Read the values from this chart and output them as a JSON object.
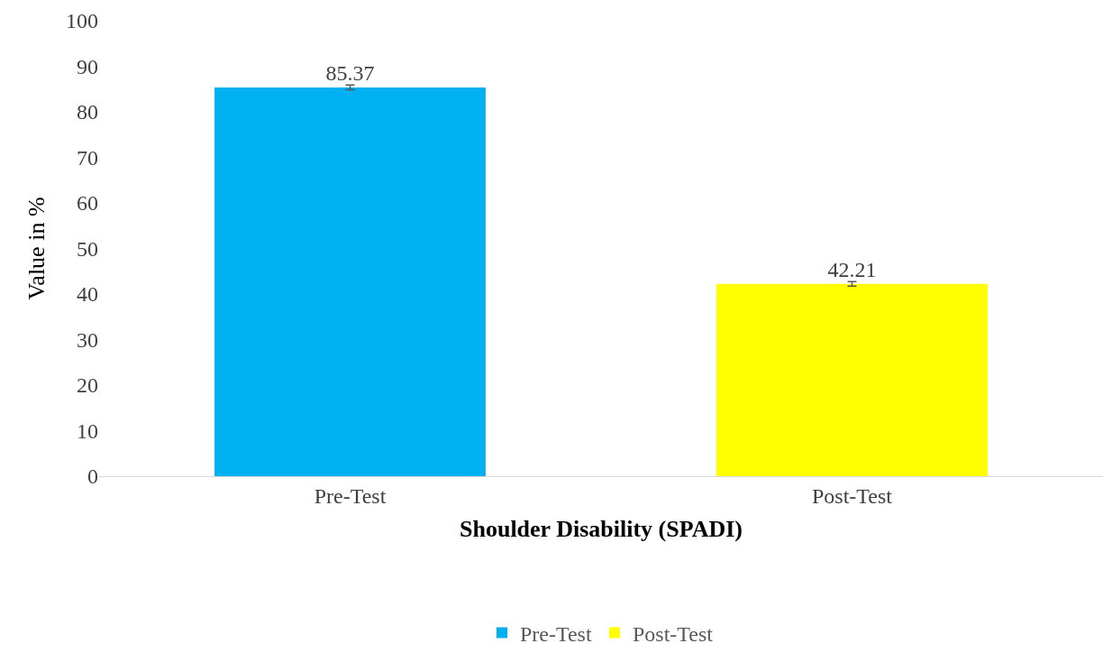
{
  "chart_data": {
    "type": "bar",
    "xlabel": "Shoulder Disability (SPADI)",
    "ylabel": "Value in %",
    "categories": [
      "Pre-Test",
      "Post-Test"
    ],
    "series": [
      {
        "name": "Pre-Test",
        "color": "#00b0f0",
        "values": [
          85.37,
          null
        ],
        "errors": [
          0.5,
          null
        ]
      },
      {
        "name": "Post-Test",
        "color": "#ffff00",
        "values": [
          null,
          42.21
        ],
        "errors": [
          null,
          0.5
        ]
      }
    ],
    "ylim": [
      0,
      100
    ],
    "yticks": [
      0,
      10,
      20,
      30,
      40,
      50,
      60,
      70,
      80,
      90,
      100
    ],
    "data_labels": true,
    "legend": "bottom"
  }
}
